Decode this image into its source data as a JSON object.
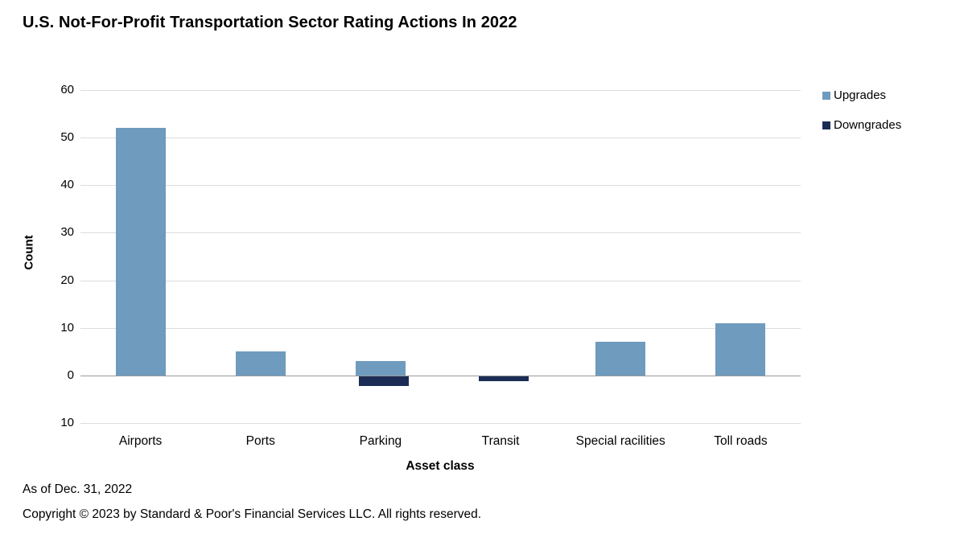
{
  "title": "U.S. Not-For-Profit Transportation Sector Rating Actions In 2022",
  "footnotes": {
    "as_of": "As of Dec. 31, 2022",
    "copyright": "Copyright © 2023 by Standard & Poor's Financial Services LLC. All rights reserved."
  },
  "colors": {
    "upgrades": "#6E9BBE",
    "downgrades": "#1B2D54",
    "gridline": "#dcdcdc",
    "zero_line": "#9b9b9b"
  },
  "chart_data": {
    "type": "bar",
    "title": "U.S. Not-For-Profit Transportation Sector Rating Actions In 2022",
    "categories": [
      "Airports",
      "Ports",
      "Parking",
      "Transit",
      "Special racilities",
      "Toll roads"
    ],
    "series": [
      {
        "name": "Upgrades",
        "color": "#6E9BBE",
        "values": [
          52,
          5,
          3,
          0,
          7,
          11
        ]
      },
      {
        "name": "Downgrades",
        "color": "#1B2D54",
        "values": [
          0,
          0,
          -2,
          -1,
          0,
          0
        ]
      }
    ],
    "xlabel": "Asset class",
    "ylabel": "Count",
    "ylim": [
      -10,
      60
    ],
    "yticks": [
      {
        "value": 60,
        "label": "60"
      },
      {
        "value": 50,
        "label": "50"
      },
      {
        "value": 40,
        "label": "40"
      },
      {
        "value": 30,
        "label": "30"
      },
      {
        "value": 20,
        "label": "20"
      },
      {
        "value": 10,
        "label": "10"
      },
      {
        "value": 0,
        "label": "0"
      },
      {
        "value": -10,
        "label": "10"
      }
    ],
    "grid": true,
    "legend_position": "right-top"
  }
}
